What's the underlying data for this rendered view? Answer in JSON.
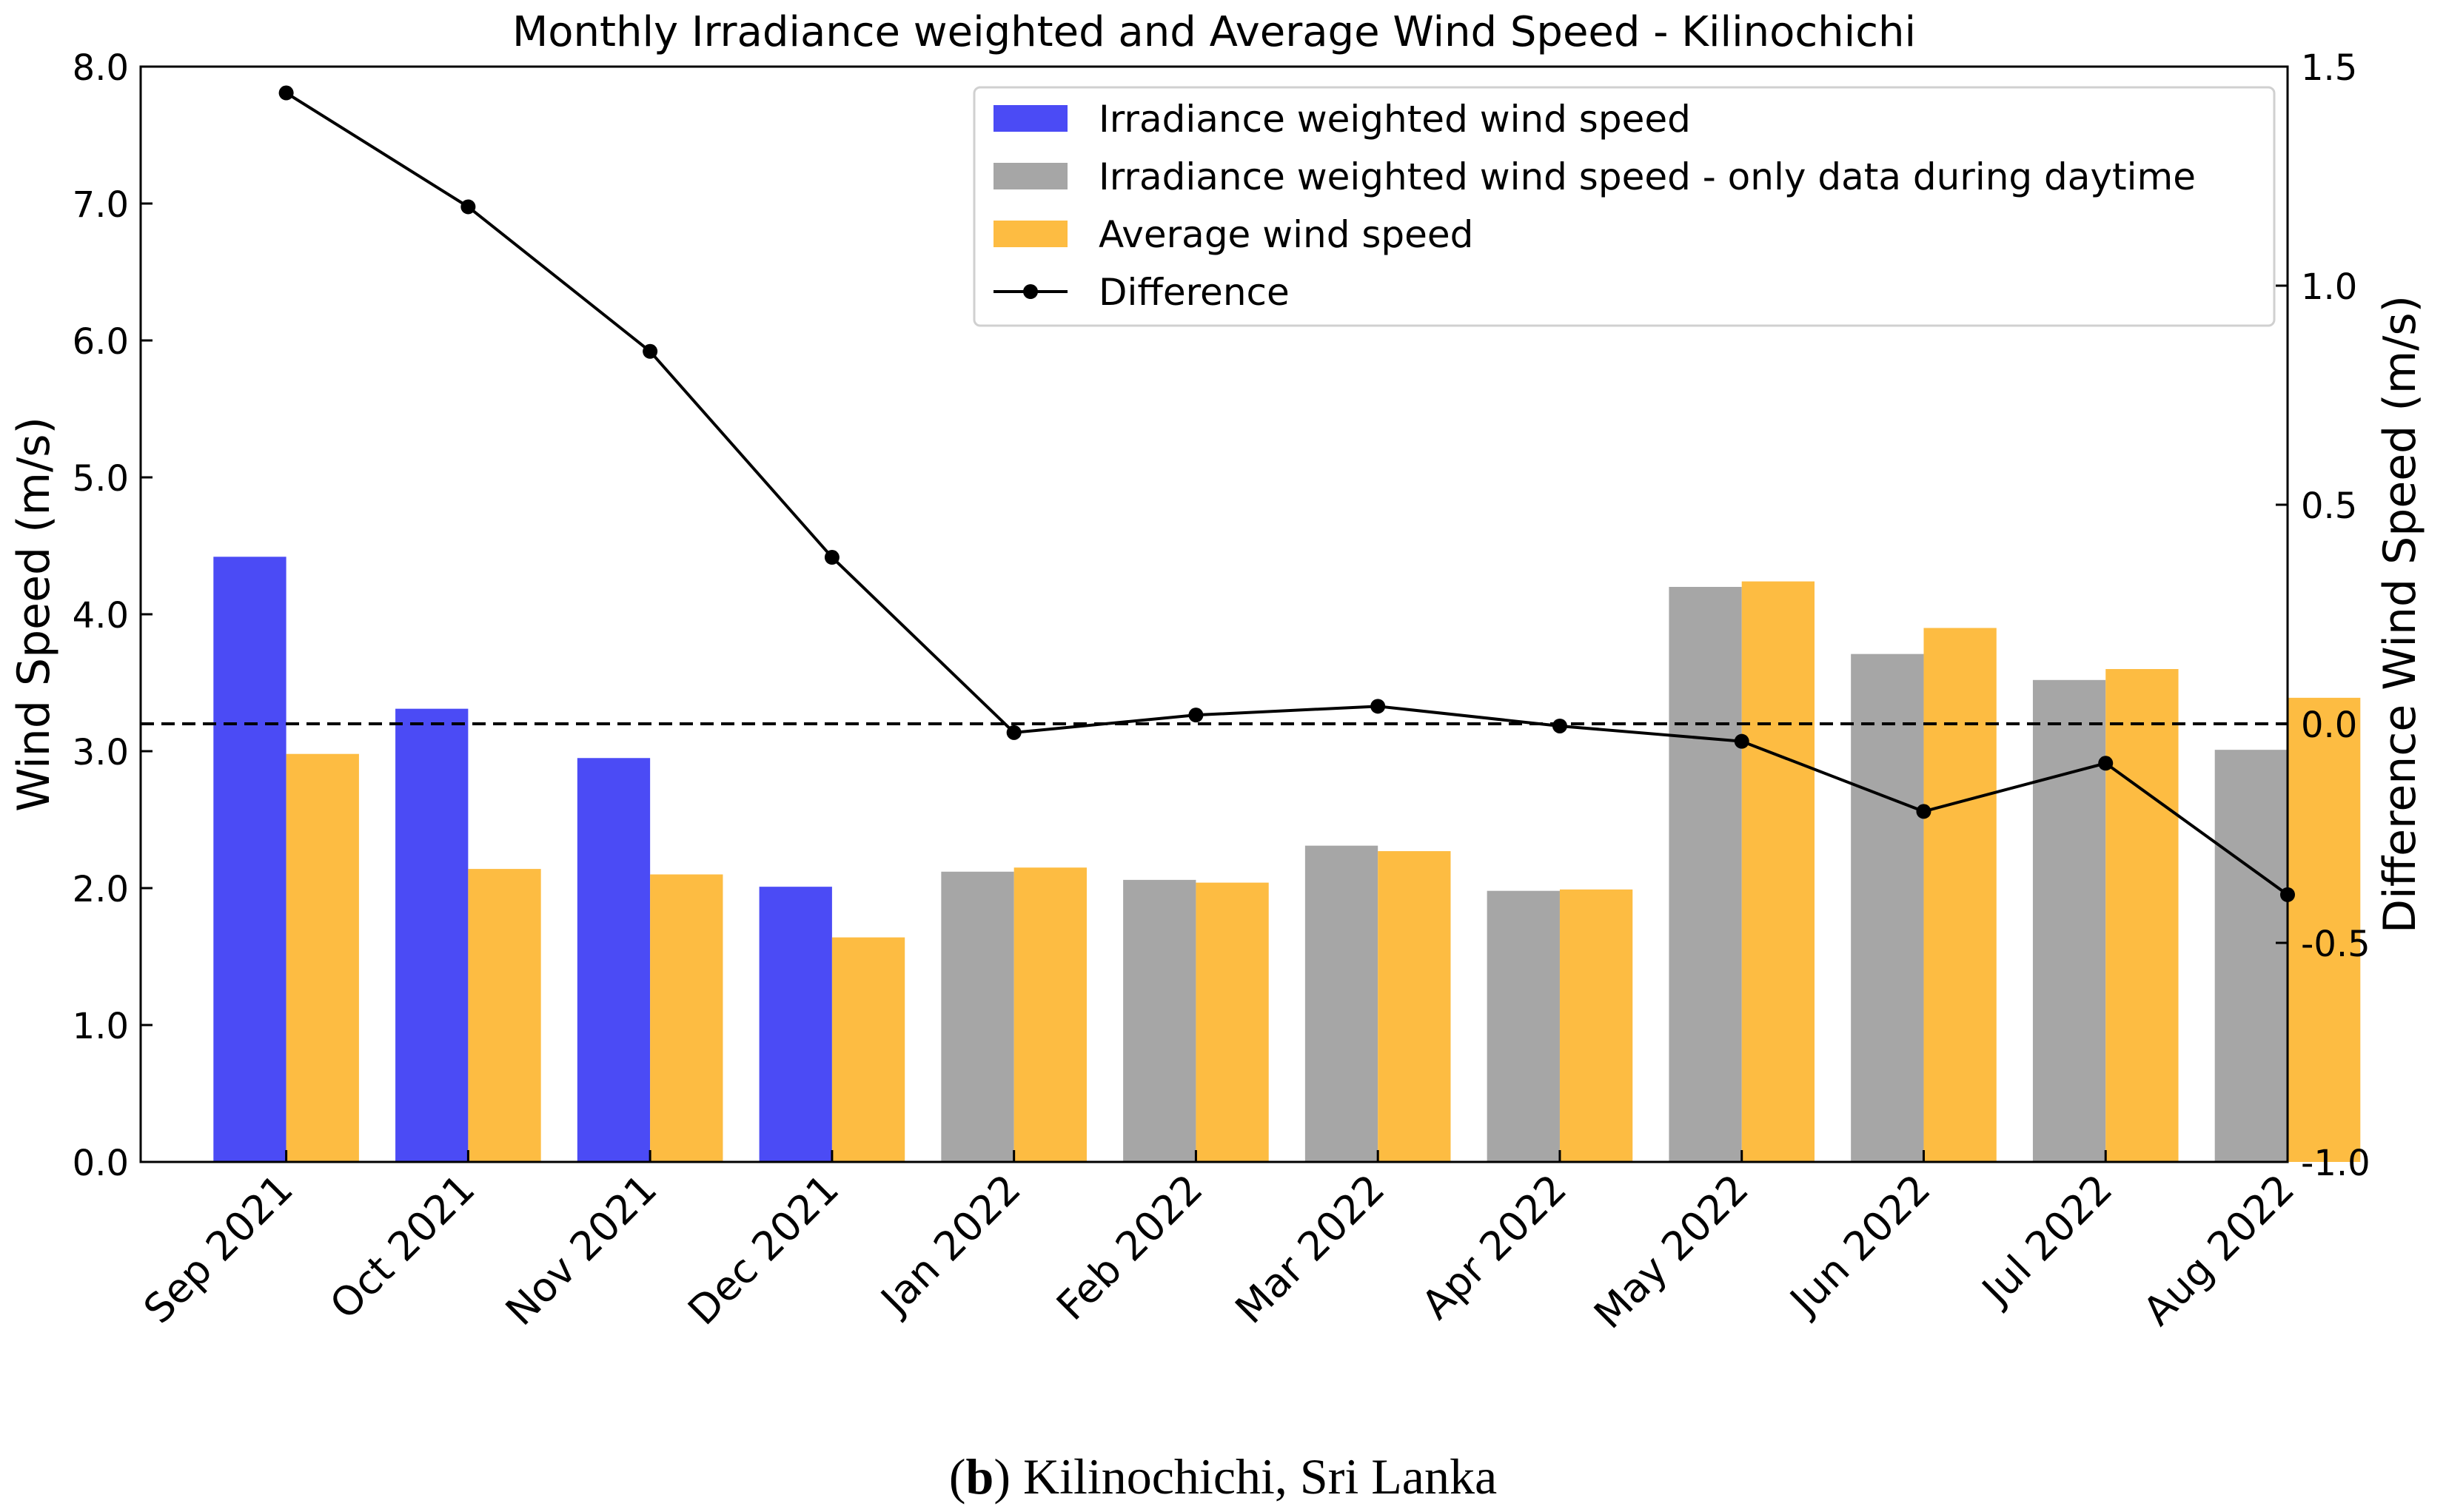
{
  "chart_data": {
    "type": "bar",
    "title": "Monthly Irradiance weighted and Average Wind Speed - Kilinochichi",
    "categories": [
      "Sep 2021",
      "Oct 2021",
      "Nov 2021",
      "Dec 2021",
      "Jan 2022",
      "Feb 2022",
      "Mar 2022",
      "Apr 2022",
      "May 2022",
      "Jun 2022",
      "Jul 2022",
      "Aug 2022"
    ],
    "ylabel": "Wind Speed (m/s)",
    "y2label": "Difference Wind Speed (m/s)",
    "ylim": [
      0,
      8
    ],
    "y2lim": [
      -1.0,
      1.5
    ],
    "yticks": [
      "0.0",
      "1.0",
      "2.0",
      "3.0",
      "4.0",
      "5.0",
      "6.0",
      "7.0",
      "8.0"
    ],
    "y2ticks": [
      "-1.0",
      "-0.5",
      "0.0",
      "0.5",
      "1.0",
      "1.5"
    ],
    "zero_line_label": "Difference = 0.0 (dashed)",
    "series": [
      {
        "name": "Irradiance weighted wind speed",
        "color": "#4b4bf5",
        "values": [
          4.42,
          3.31,
          2.95,
          2.01,
          null,
          null,
          null,
          null,
          null,
          null,
          null,
          null
        ]
      },
      {
        "name": "Irradiance weighted wind speed - only data during daytime",
        "color": "#a6a6a6",
        "values": [
          null,
          null,
          null,
          null,
          2.12,
          2.06,
          2.31,
          1.98,
          4.2,
          3.71,
          3.52,
          3.01
        ]
      },
      {
        "name": "Average wind speed",
        "color": "#fdbc42",
        "values": [
          2.98,
          2.14,
          2.1,
          1.64,
          2.15,
          2.04,
          2.27,
          1.99,
          4.24,
          3.9,
          3.6,
          3.39
        ]
      },
      {
        "name": "Difference",
        "type": "line",
        "axis": "right",
        "color": "#000000",
        "values": [
          1.44,
          1.18,
          0.85,
          0.38,
          -0.02,
          0.02,
          0.04,
          -0.005,
          -0.04,
          -0.2,
          -0.09,
          -0.39
        ]
      }
    ],
    "legend_position": "top-right"
  },
  "caption": {
    "label": "b",
    "text": ") Kilinochichi, Sri Lanka",
    "open": "("
  }
}
